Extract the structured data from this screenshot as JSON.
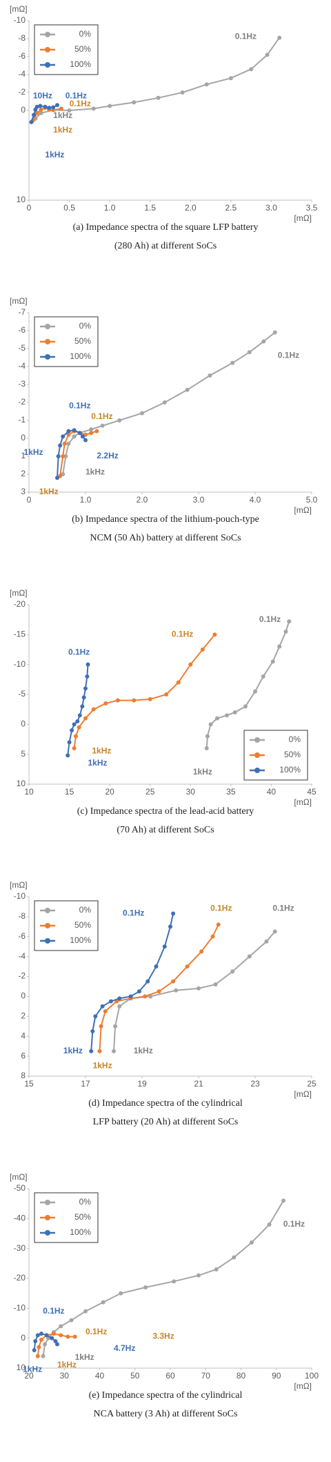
{
  "chart_data": [
    {
      "type": "line",
      "y_label": "[mΩ]",
      "x_label": "[mΩ]",
      "legend": "upper left",
      "caption": [
        "(a) Impedance spectra of the square LFP battery",
        "(280 Ah) at different SoCs"
      ],
      "xlim": [
        0,
        3.5
      ],
      "xticks": [
        0,
        0.5,
        {
          "value": 1,
          "label": "1.0"
        },
        1.5,
        {
          "value": 2,
          "label": "2.0"
        },
        2.5,
        {
          "value": 3,
          "label": "3.0"
        },
        3.5
      ],
      "ylim": [
        10,
        -10
      ],
      "yticks": [
        -10,
        -8,
        -6,
        -4,
        -2,
        0,
        10
      ],
      "series": [
        {
          "name": "0%",
          "color": "#a5a5a5",
          "x": [
            0.08,
            0.15,
            0.3,
            0.5,
            0.8,
            1.0,
            1.3,
            1.6,
            1.9,
            2.2,
            2.5,
            2.75,
            2.95,
            3.1
          ],
          "values": [
            0.9,
            0.3,
            -0.05,
            0,
            -0.2,
            -0.5,
            -0.9,
            -1.4,
            -2.0,
            -2.9,
            -3.6,
            -4.6,
            -6.2,
            -8.1
          ]
        },
        {
          "name": "50%",
          "color": "#ed7d31",
          "x": [
            0.05,
            0.1,
            0.15,
            0.2,
            0.25,
            0.3,
            0.4
          ],
          "values": [
            1.1,
            0.3,
            -0.1,
            -0.3,
            -0.1,
            -0.05,
            -0.2
          ]
        },
        {
          "name": "100%",
          "color": "#3f6fb6",
          "x": [
            0.03,
            0.06,
            0.08,
            0.1,
            0.14,
            0.2,
            0.25,
            0.3,
            0.35
          ],
          "values": [
            1.3,
            0.5,
            -0.1,
            -0.4,
            -0.5,
            -0.4,
            -0.3,
            -0.35,
            -0.6
          ]
        }
      ],
      "annotations": [
        {
          "text": "0.1Hz",
          "color": "#808080"
        },
        {
          "text": "10Hz",
          "color": "#3f6fb6"
        },
        {
          "text": "0.1Hz",
          "color": "#3f6fb6"
        },
        {
          "text": "0.1Hz",
          "color": "#c7862a"
        },
        {
          "text": "1kHz",
          "color": "#808080"
        },
        {
          "text": "1kHz",
          "color": "#c7862a"
        },
        {
          "text": "1kHz",
          "color": "#3f6fb6"
        }
      ]
    },
    {
      "type": "line",
      "y_label": "[mΩ]",
      "x_label": "[mΩ]",
      "legend": "upper left",
      "caption": [
        "(b) Impedance spectra of the lithium-pouch-type",
        "NCM (50 Ah) battery at different SoCs"
      ],
      "xlim": [
        0,
        5
      ],
      "xticks": [
        0,
        {
          "value": 1,
          "label": "1.0"
        },
        {
          "value": 2,
          "label": "2.0"
        },
        {
          "value": 3,
          "label": "3.0"
        },
        {
          "value": 4,
          "label": "4.0"
        },
        {
          "value": 5,
          "label": "5.0"
        }
      ],
      "ylim": [
        3,
        -7
      ],
      "yticks": [
        -7,
        -6,
        -5,
        -4,
        -3,
        -2,
        -1,
        0,
        1,
        2,
        3
      ],
      "series": [
        {
          "name": "0%",
          "color": "#a5a5a5",
          "x": [
            0.6,
            0.65,
            0.7,
            0.8,
            0.9,
            1.1,
            1.3,
            1.6,
            2.0,
            2.4,
            2.8,
            3.2,
            3.6,
            3.9,
            4.15,
            4.35
          ],
          "values": [
            2.0,
            1.0,
            0.3,
            -0.1,
            -0.3,
            -0.5,
            -0.7,
            -1.0,
            -1.4,
            -2.0,
            -2.7,
            -3.5,
            -4.2,
            -4.8,
            -5.4,
            -5.9
          ]
        },
        {
          "name": "50%",
          "color": "#ed7d31",
          "x": [
            0.55,
            0.6,
            0.63,
            0.7,
            0.8,
            0.9,
            1.0,
            1.1,
            1.2
          ],
          "values": [
            2.1,
            1.0,
            0.3,
            -0.2,
            -0.4,
            -0.3,
            -0.2,
            -0.3,
            -0.4
          ]
        },
        {
          "name": "100%",
          "color": "#3f6fb6",
          "x": [
            0.5,
            0.52,
            0.55,
            0.6,
            0.7,
            0.8,
            0.9,
            0.95,
            1.0
          ],
          "values": [
            2.2,
            1.0,
            0.4,
            -0.1,
            -0.4,
            -0.45,
            -0.3,
            -0.1,
            0.1
          ]
        }
      ],
      "annotations": [
        {
          "text": "0.1Hz",
          "color": "#808080"
        },
        {
          "text": "0.1Hz",
          "color": "#3f6fb6"
        },
        {
          "text": "0.1Hz",
          "color": "#c7862a"
        },
        {
          "text": "1kHz",
          "color": "#3f6fb6"
        },
        {
          "text": "2.2Hz",
          "color": "#3f6fb6"
        },
        {
          "text": "1kHz",
          "color": "#808080"
        },
        {
          "text": "1kHz",
          "color": "#c7862a"
        }
      ]
    },
    {
      "type": "line",
      "y_label": "[mΩ]",
      "x_label": "[mΩ]",
      "legend": "lower right",
      "caption": [
        "(c) Impedance spectra of the lead-acid battery",
        "(70 Ah) at different SoCs"
      ],
      "xlim": [
        10,
        45
      ],
      "xticks": [
        10,
        15,
        20,
        25,
        30,
        35,
        40,
        45
      ],
      "ylim": [
        10,
        -20
      ],
      "yticks": [
        -20,
        -15,
        -10,
        -5,
        0,
        5,
        10
      ],
      "series": [
        {
          "name": "0%",
          "color": "#a5a5a5",
          "x": [
            32,
            32.1,
            32.5,
            33.3,
            34.5,
            35.5,
            36.8,
            38,
            39,
            40.2,
            41,
            41.8,
            42.2
          ],
          "values": [
            4,
            2,
            0,
            -1,
            -1.5,
            -2,
            -3,
            -5.5,
            -8,
            -10.5,
            -13,
            -15.5,
            -17.2
          ]
        },
        {
          "name": "50%",
          "color": "#ed7d31",
          "x": [
            15.6,
            15.8,
            16.2,
            17,
            18,
            19.5,
            21,
            23,
            25,
            27,
            28.5,
            30,
            31.5,
            33
          ],
          "values": [
            4,
            2,
            0.5,
            -1,
            -2.5,
            -3.5,
            -4,
            -4,
            -4.2,
            -5,
            -7,
            -10,
            -12.5,
            -15
          ]
        },
        {
          "name": "100%",
          "color": "#3f6fb6",
          "x": [
            14.8,
            15.0,
            15.3,
            15.6,
            16,
            16.3,
            16.6,
            16.8,
            17,
            17.2,
            17.3
          ],
          "values": [
            5.2,
            3,
            1,
            0,
            -0.5,
            -1.5,
            -3,
            -4.5,
            -6,
            -8,
            -10
          ]
        }
      ],
      "annotations": [
        {
          "text": "0.1Hz",
          "color": "#808080"
        },
        {
          "text": "0.1Hz",
          "color": "#c7862a"
        },
        {
          "text": "0.1Hz",
          "color": "#3f6fb6"
        },
        {
          "text": "1kHz",
          "color": "#c7862a"
        },
        {
          "text": "1kHz",
          "color": "#3f6fb6"
        },
        {
          "text": "1kHz",
          "color": "#808080"
        }
      ]
    },
    {
      "type": "line",
      "y_label": "[mΩ]",
      "x_label": "[mΩ]",
      "legend": "upper left",
      "caption": [
        "(d) Impedance spectra of the cylindrical",
        "LFP battery (20 Ah) at different SoCs"
      ],
      "xlim": [
        15,
        25
      ],
      "xticks": [
        15,
        17,
        19,
        21,
        23,
        25
      ],
      "ylim": [
        8,
        -10
      ],
      "yticks": [
        -10,
        -8,
        -6,
        -4,
        -2,
        0,
        2,
        4,
        6,
        8
      ],
      "series": [
        {
          "name": "0%",
          "color": "#a5a5a5",
          "x": [
            18.0,
            18.05,
            18.2,
            18.6,
            19.3,
            20.2,
            21.0,
            21.6,
            22.2,
            22.8,
            23.4,
            23.7
          ],
          "values": [
            5.5,
            3,
            1,
            0.2,
            0,
            -0.6,
            -0.8,
            -1.2,
            -2.5,
            -4,
            -5.5,
            -6.5
          ]
        },
        {
          "name": "50%",
          "color": "#ed7d31",
          "x": [
            17.5,
            17.55,
            17.7,
            18.1,
            18.6,
            19.1,
            19.6,
            20.1,
            20.6,
            21.1,
            21.5,
            21.7
          ],
          "values": [
            5.5,
            3,
            1.5,
            0.5,
            0.2,
            0,
            -0.5,
            -1.5,
            -3,
            -4.5,
            -6,
            -7.2
          ]
        },
        {
          "name": "100%",
          "color": "#3f6fb6",
          "x": [
            17.2,
            17.25,
            17.35,
            17.6,
            17.9,
            18.2,
            18.6,
            18.9,
            19.2,
            19.5,
            19.8,
            20.0,
            20.1
          ],
          "values": [
            5.5,
            3.5,
            2,
            1,
            0.5,
            0.2,
            0,
            -0.5,
            -1.5,
            -3,
            -5,
            -7,
            -8.3
          ]
        }
      ],
      "annotations": [
        {
          "text": "0.1Hz",
          "color": "#3f6fb6"
        },
        {
          "text": "0.1Hz",
          "color": "#c7862a"
        },
        {
          "text": "0.1Hz",
          "color": "#808080"
        },
        {
          "text": "1kHz",
          "color": "#3f6fb6"
        },
        {
          "text": "1kHz",
          "color": "#c7862a"
        },
        {
          "text": "1kHz",
          "color": "#808080"
        }
      ]
    },
    {
      "type": "line",
      "y_label": "[mΩ]",
      "x_label": "[mΩ]",
      "legend": "upper left",
      "caption": [
        "(e) Impedance spectra of the cylindrical",
        "NCA battery (3 Ah) at different SoCs"
      ],
      "xlim": [
        20,
        100
      ],
      "xticks": [
        20,
        30,
        40,
        50,
        60,
        70,
        80,
        90,
        100
      ],
      "ylim": [
        10,
        -50
      ],
      "yticks": [
        -50,
        -40,
        -30,
        -20,
        -10,
        0,
        10
      ],
      "series": [
        {
          "name": "0%",
          "color": "#a5a5a5",
          "x": [
            24,
            24.5,
            25.5,
            27,
            29,
            32,
            36,
            41,
            46,
            53,
            61,
            68,
            73,
            78,
            83,
            88,
            92
          ],
          "values": [
            6,
            2,
            0,
            -2,
            -4,
            -6,
            -9,
            -12,
            -15,
            -17,
            -19,
            -21,
            -23,
            -27,
            -32,
            -38,
            -46
          ]
        },
        {
          "name": "50%",
          "color": "#ed7d31",
          "x": [
            22.5,
            22.8,
            23.5,
            25,
            27,
            29,
            31,
            33
          ],
          "values": [
            6,
            3,
            0.5,
            -1,
            -1.5,
            -1,
            -0.5,
            -0.5
          ]
        },
        {
          "name": "100%",
          "color": "#3f6fb6",
          "x": [
            21.5,
            21.8,
            22.5,
            23.5,
            25,
            26.5,
            27.5,
            28
          ],
          "values": [
            4,
            1,
            -1,
            -1.5,
            -1,
            0,
            1,
            2
          ]
        }
      ],
      "annotations": [
        {
          "text": "0.1Hz",
          "color": "#808080"
        },
        {
          "text": "0.1Hz",
          "color": "#3f6fb6"
        },
        {
          "text": "0.1Hz",
          "color": "#c7862a"
        },
        {
          "text": "3.3Hz",
          "color": "#c7862a"
        },
        {
          "text": "4.7Hz",
          "color": "#3f6fb6"
        },
        {
          "text": "1kHz",
          "color": "#3f6fb6"
        },
        {
          "text": "1kHz",
          "color": "#808080"
        },
        {
          "text": "1kHz",
          "color": "#c7862a"
        }
      ]
    }
  ]
}
